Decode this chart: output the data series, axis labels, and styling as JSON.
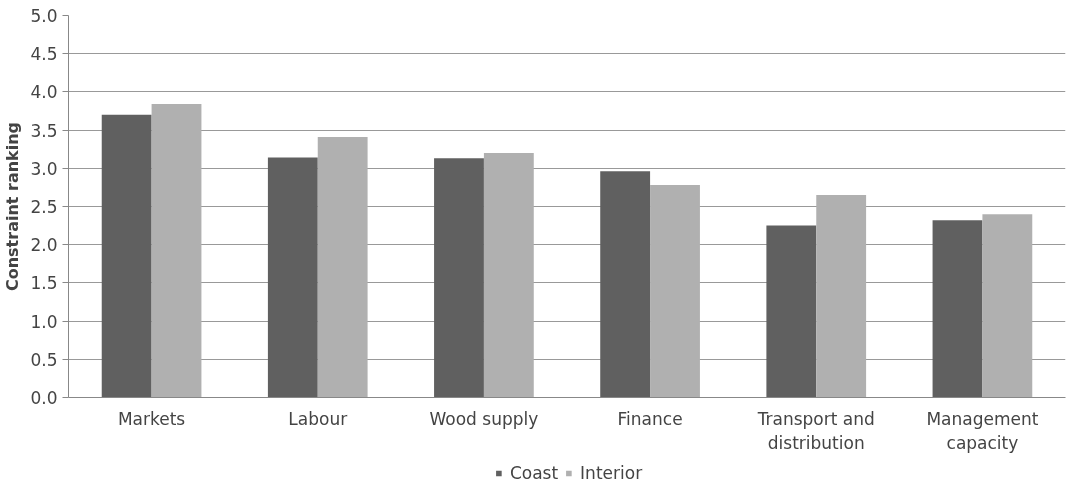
{
  "chart_data": {
    "type": "bar",
    "ylabel": "Constraint ranking",
    "categories": [
      "Markets",
      "Labour",
      "Wood supply",
      "Finance",
      "Transport and\ndistribution",
      "Management\ncapacity"
    ],
    "series": [
      {
        "name": "Coast",
        "color": "#606060",
        "values": [
          3.7,
          3.14,
          3.13,
          2.96,
          2.25,
          2.32
        ]
      },
      {
        "name": "Interior",
        "color": "#b0b0b0",
        "values": [
          3.84,
          3.41,
          3.2,
          2.78,
          2.65,
          2.4
        ]
      }
    ],
    "ylim": [
      0,
      5
    ],
    "yticks": [
      {
        "value": 0,
        "label": "0.0"
      },
      {
        "value": 0.5,
        "label": "0.5"
      },
      {
        "value": 1,
        "label": "1.0"
      },
      {
        "value": 1.5,
        "label": "1.5"
      },
      {
        "value": 2,
        "label": "2.0"
      },
      {
        "value": 2.5,
        "label": "2.5"
      },
      {
        "value": 3,
        "label": "3.0"
      },
      {
        "value": 3.5,
        "label": "3.5"
      },
      {
        "value": 4,
        "label": "4.0"
      },
      {
        "value": 4.5,
        "label": "4.5"
      },
      {
        "value": 5,
        "label": "5.0"
      }
    ],
    "grid": "y",
    "legend": "bottom"
  }
}
